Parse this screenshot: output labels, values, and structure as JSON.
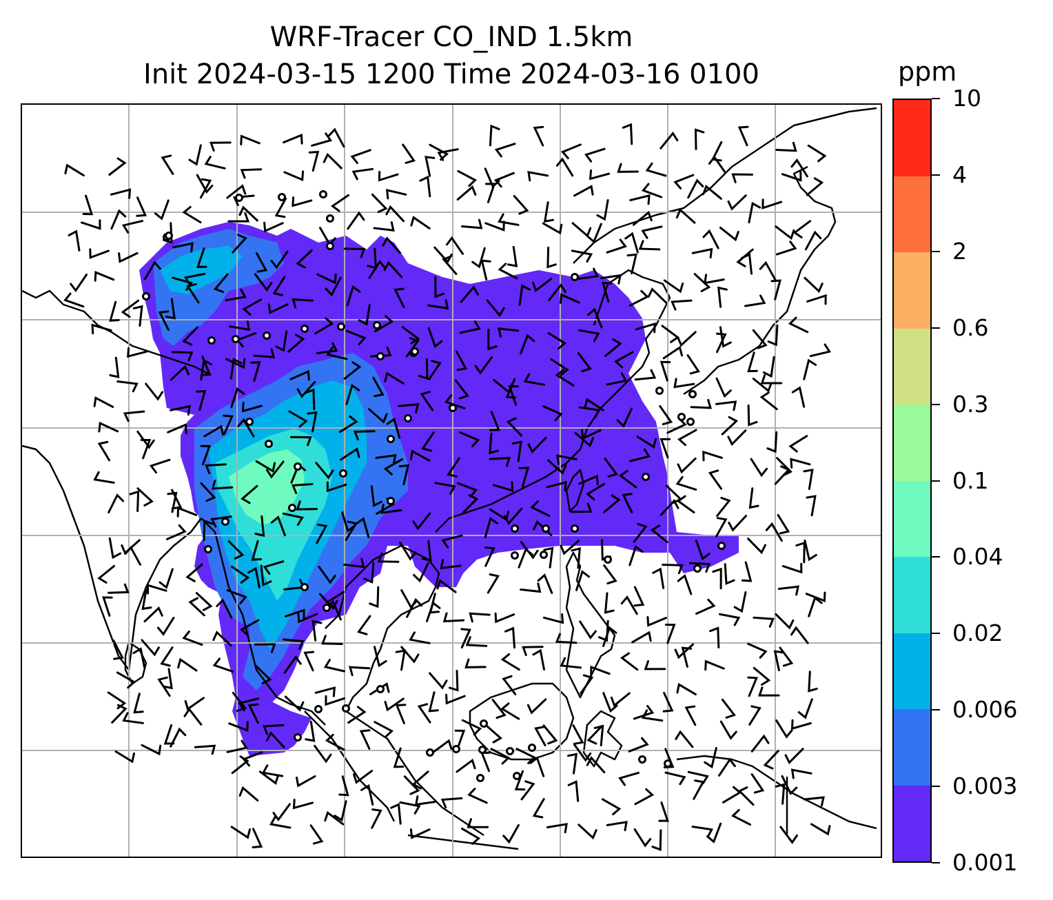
{
  "title": {
    "line1": "WRF-Tracer CO_IND 1.5km",
    "line2": "Init 2024-03-15 1200 Time 2024-03-16 0100"
  },
  "colorbar": {
    "unit": "ppm",
    "levels": [
      "0.001",
      "0.003",
      "0.006",
      "0.02",
      "0.04",
      "0.1",
      "0.3",
      "0.6",
      "2",
      "4",
      "10"
    ],
    "colors": [
      "#6229f7",
      "#3474f2",
      "#03b1ea",
      "#2fded8",
      "#6ffbc0",
      "#9afa9b",
      "#d0e185",
      "#fcaf62",
      "#fd6f3b",
      "#ff2b18"
    ]
  },
  "map": {
    "gridlines": true,
    "coastline_color": "#000000",
    "gridline_color": "#b0b0b0",
    "wind_barbs": true,
    "calm_circles": true
  }
}
